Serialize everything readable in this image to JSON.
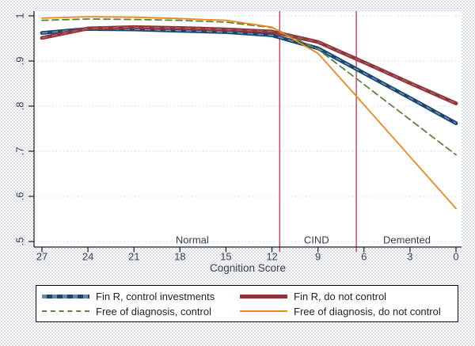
{
  "chart_data": {
    "type": "line",
    "title": "",
    "xlabel": "Cognition Score",
    "x_axis_reversed": true,
    "xlim": [
      27,
      0
    ],
    "ylim": [
      0.5,
      1.0
    ],
    "grid": true,
    "x": [
      27,
      24,
      21,
      18,
      15,
      12,
      9,
      6,
      3,
      0
    ],
    "x_tick_labels": [
      "27",
      "24",
      "21",
      "18",
      "15",
      "12",
      "9",
      "6",
      "3",
      "0"
    ],
    "y_ticks": [
      1,
      0.9,
      0.8,
      0.7,
      0.6,
      0.5
    ],
    "y_tick_labels": [
      "1",
      ".9",
      ".8",
      ".7",
      ".6",
      ".5"
    ],
    "series": [
      {
        "name": "Fin R, control investments",
        "color": "#1a476f",
        "style": "thick-dash",
        "values": [
          0.962,
          0.971,
          0.97,
          0.967,
          0.964,
          0.957,
          0.928,
          0.873,
          0.818,
          0.762
        ]
      },
      {
        "name": "Fin R, do not control",
        "color": "#90353b",
        "style": "thick",
        "values": [
          0.951,
          0.972,
          0.975,
          0.973,
          0.97,
          0.965,
          0.942,
          0.897,
          0.851,
          0.806
        ]
      },
      {
        "name": "Free of diagnosis, control",
        "color": "#5d8140",
        "style": "dashed-thin",
        "values": [
          0.99,
          0.993,
          0.992,
          0.99,
          0.986,
          0.974,
          0.926,
          0.848,
          0.77,
          0.692
        ]
      },
      {
        "name": "Free of diagnosis, do not control",
        "color": "#ea871f",
        "style": "thin",
        "values": [
          0.995,
          0.998,
          0.997,
          0.994,
          0.99,
          0.975,
          0.917,
          0.803,
          0.688,
          0.573
        ]
      }
    ],
    "vlines": [
      {
        "x": 11.5,
        "color": "#c7203b"
      },
      {
        "x": 6.5,
        "color": "#c7203b"
      }
    ],
    "region_labels": [
      {
        "text": "Normal",
        "x": 17.2,
        "y": 0.503
      },
      {
        "text": "CIND",
        "x": 9.1,
        "y": 0.503
      },
      {
        "text": "Demented",
        "x": 3.2,
        "y": 0.503
      }
    ],
    "legend_position": "bottom"
  },
  "colors": {
    "grid": "#bfd9e0",
    "axis": "#1c1c1c",
    "plot_background": "#ffffff"
  }
}
